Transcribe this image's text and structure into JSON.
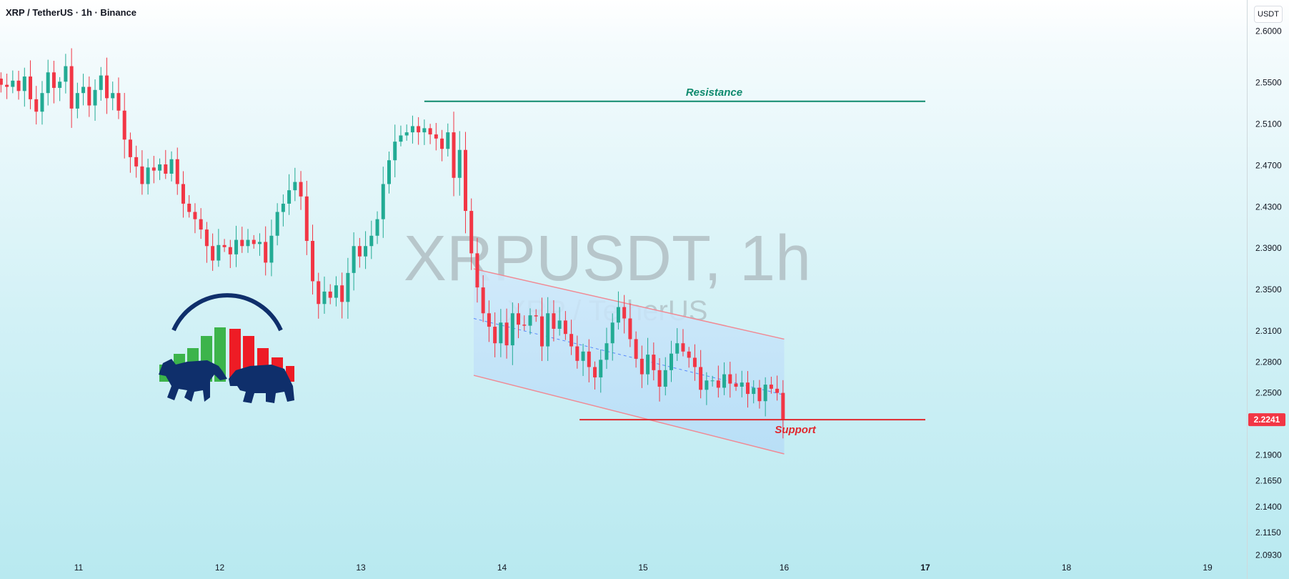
{
  "header": {
    "symbol": "XRP / TetherUS",
    "interval": "1h",
    "exchange": "Binance",
    "title": "XRP / TetherUS · 1h · Binance"
  },
  "currency_button": "USDT",
  "watermark": {
    "main": "XRPUSDT, 1h",
    "sub": "XRP / TetherUS"
  },
  "colors": {
    "up": "#22ab94",
    "down": "#f23645",
    "resistance": "#0f8a6e",
    "support": "#e0282e",
    "channel_fill": "#bfe0f7",
    "channel_edge": "#f08a94"
  },
  "chart_data": {
    "type": "candlestick",
    "ylim": [
      2.07,
      2.63
    ],
    "y_ticks": [
      "2.6000",
      "2.5500",
      "2.5100",
      "2.4700",
      "2.4300",
      "2.3900",
      "2.3500",
      "2.3100",
      "2.2800",
      "2.2500",
      "2.1900",
      "2.1650",
      "2.1400",
      "2.1150",
      "2.0930"
    ],
    "x_ticks": [
      {
        "label": "11",
        "day": 11
      },
      {
        "label": "12",
        "day": 12
      },
      {
        "label": "13",
        "day": 13
      },
      {
        "label": "14",
        "day": 14
      },
      {
        "label": "15",
        "day": 15
      },
      {
        "label": "16",
        "day": 16
      },
      {
        "label": "17",
        "day": 17,
        "bold": true
      },
      {
        "label": "18",
        "day": 18
      },
      {
        "label": "19",
        "day": 19
      }
    ],
    "candle_start_day": 10.45,
    "candle_step_hours": 1,
    "close_series": [
      2.548,
      2.546,
      2.552,
      2.542,
      2.556,
      2.534,
      2.522,
      2.54,
      2.56,
      2.545,
      2.551,
      2.566,
      2.525,
      2.54,
      2.546,
      2.528,
      2.543,
      2.557,
      2.535,
      2.54,
      2.523,
      2.495,
      2.478,
      2.469,
      2.452,
      2.468,
      2.465,
      2.471,
      2.462,
      2.476,
      2.452,
      2.433,
      2.425,
      2.418,
      2.408,
      2.392,
      2.378,
      2.393,
      2.391,
      2.384,
      2.398,
      2.392,
      2.398,
      2.394,
      2.396,
      2.376,
      2.402,
      2.425,
      2.433,
      2.446,
      2.454,
      2.44,
      2.397,
      2.358,
      2.336,
      2.348,
      2.342,
      2.354,
      2.338,
      2.366,
      2.392,
      2.382,
      2.392,
      2.402,
      2.418,
      2.452,
      2.475,
      2.493,
      2.499,
      2.502,
      2.508,
      2.502,
      2.506,
      2.5,
      2.496,
      2.486,
      2.502,
      2.458,
      2.485,
      2.426,
      2.385,
      2.352,
      2.327,
      2.314,
      2.298,
      2.318,
      2.296,
      2.327,
      2.316,
      2.315,
      2.325,
      2.324,
      2.295,
      2.327,
      2.312,
      2.32,
      2.307,
      2.295,
      2.281,
      2.29,
      2.275,
      2.265,
      2.282,
      2.298,
      2.318,
      2.333,
      2.322,
      2.302,
      2.283,
      2.268,
      2.287,
      2.272,
      2.256,
      2.272,
      2.288,
      2.298,
      2.29,
      2.284,
      2.275,
      2.253,
      2.262,
      2.262,
      2.255,
      2.268,
      2.259,
      2.256,
      2.26,
      2.249,
      2.255,
      2.242,
      2.258,
      2.254,
      2.25,
      2.224
    ],
    "series": [
      {
        "kind": "resistance",
        "label": "Resistance",
        "day_start": 13.45,
        "day_end": 17.0,
        "value": 2.532
      },
      {
        "kind": "support",
        "label": "Support",
        "day_start": 14.55,
        "day_end": 17.0,
        "value": 2.2241
      },
      {
        "kind": "channel",
        "day_start": 13.8,
        "day_end": 16.0,
        "upper": [
          2.37,
          2.302
        ],
        "lower": [
          2.267,
          2.191
        ],
        "mid": [
          2.322,
          2.248
        ]
      }
    ],
    "last_price": "2.2241"
  },
  "logo": {
    "icon": "bull-bear-icon"
  }
}
